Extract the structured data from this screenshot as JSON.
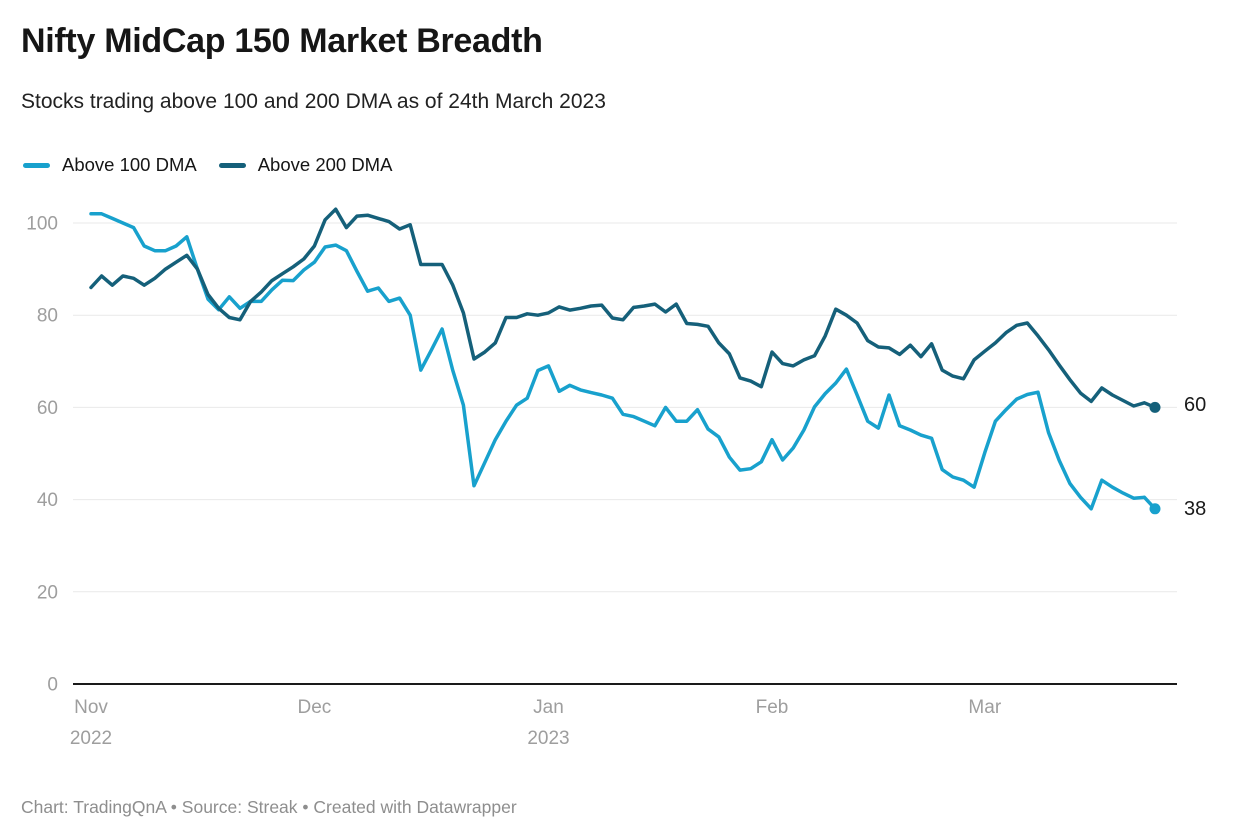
{
  "header": {
    "title": "Nifty MidCap 150 Market Breadth",
    "subtitle": "Stocks trading above 100 and 200 DMA as of 24th March 2023"
  },
  "legend": {
    "items": [
      {
        "label": "Above 100 DMA",
        "color": "#18a1cd"
      },
      {
        "label": "Above 200 DMA",
        "color": "#15607a"
      }
    ]
  },
  "footer": {
    "credit": "Chart: TradingQnA • Source: Streak • Created with Datawrapper"
  },
  "colors": {
    "grid": "#e9e9e9",
    "baseline": "#1a1a1a",
    "tick_text": "#9e9e9e",
    "value_label_text": "#1a1a1a"
  },
  "chart_data": {
    "type": "line",
    "title": "Nifty MidCap 150 Market Breadth",
    "subtitle": "Stocks trading above 100 and 200 DMA as of 24th March 2023",
    "x_axis": {
      "unit": "trading days, 1 Nov 2022 - 24 Mar 2023",
      "tick_labels": [
        "Nov",
        "Dec",
        "Jan",
        "Feb",
        "Mar"
      ],
      "tick_sublabels": [
        "2022",
        "",
        "2023",
        "",
        ""
      ],
      "tick_indices": [
        0,
        21,
        43,
        64,
        84
      ]
    },
    "y_axis": {
      "ticks": [
        0,
        20,
        40,
        60,
        80,
        100
      ],
      "range": [
        0,
        106
      ],
      "grid": true
    },
    "legend_position": "top-left",
    "series": [
      {
        "name": "Above 100 DMA",
        "color": "#18a1cd",
        "end_label": "38",
        "end_value": 38,
        "values": [
          102,
          102,
          101,
          100,
          99,
          95,
          94,
          94,
          95,
          97,
          90,
          83.5,
          81.2,
          84,
          81.5,
          83,
          83,
          85.5,
          87.6,
          87.5,
          89.8,
          91.5,
          94.8,
          95.2,
          94,
          89.5,
          85.2,
          85.9,
          83,
          83.7,
          80,
          68.1,
          72.5,
          77,
          68,
          60.5,
          43,
          48,
          53,
          57,
          60.5,
          62,
          68,
          69,
          63.5,
          64.8,
          63.8,
          63.2,
          62.7,
          62,
          58.5,
          58,
          57,
          56,
          60,
          57,
          57,
          59.5,
          55.3,
          53.6,
          49.2,
          46.4,
          46.7,
          48.2,
          53,
          48.6,
          51.2,
          55.1,
          60.1,
          63,
          65.3,
          68.3,
          62.7,
          57,
          55.5,
          62.7,
          56,
          55.1,
          54,
          53.3,
          46.5,
          44.9,
          44.2,
          42.7,
          50.2,
          57,
          59.5,
          61.8,
          62.8,
          63.3,
          54.5,
          48.5,
          43.5,
          40.5,
          38,
          44.2,
          42.7,
          41.4,
          40.3,
          40.5,
          38
        ]
      },
      {
        "name": "Above 200 DMA",
        "color": "#15607a",
        "end_label": "60",
        "end_value": 60,
        "values": [
          86,
          88.5,
          86.5,
          88.5,
          88,
          86.5,
          88,
          90,
          91.5,
          93,
          90,
          84.5,
          81.5,
          79.5,
          79,
          83,
          85,
          87.5,
          89,
          90.5,
          92.2,
          95,
          100.7,
          103,
          99,
          101.5,
          101.7,
          101,
          100.3,
          98.7,
          99.6,
          91,
          91,
          91,
          86.5,
          80.5,
          70.5,
          72,
          74,
          79.5,
          79.5,
          80.3,
          80,
          80.5,
          81.8,
          81.1,
          81.5,
          82,
          82.2,
          79.4,
          79,
          81.7,
          82,
          82.4,
          80.7,
          82.4,
          78.2,
          78,
          77.6,
          74,
          71.6,
          66.4,
          65.7,
          64.5,
          72,
          69.5,
          69,
          70.3,
          71.2,
          75.5,
          81.3,
          80,
          78.3,
          74.5,
          73.1,
          72.9,
          71.5,
          73.5,
          71,
          73.8,
          68.1,
          66.8,
          66.2,
          70.3,
          72.2,
          74,
          76.2,
          77.8,
          78.3,
          75.5,
          72.5,
          69.2,
          66,
          63.1,
          61.3,
          64.2,
          62.7,
          61.5,
          60.3,
          61,
          60
        ]
      }
    ],
    "layout": {
      "x_start": 91,
      "x_step": 10.64,
      "y_baseline_svg": 494,
      "y_scale": 4.61,
      "grid_x1": 73,
      "grid_x2": 1177,
      "tick_label_x": 58,
      "month_label_y": 523,
      "year_label_y": 554,
      "value_label_x": 1184,
      "value_label_y": [
        325,
        221
      ],
      "dot_radius": 5.5,
      "line_width": 3.5
    }
  }
}
